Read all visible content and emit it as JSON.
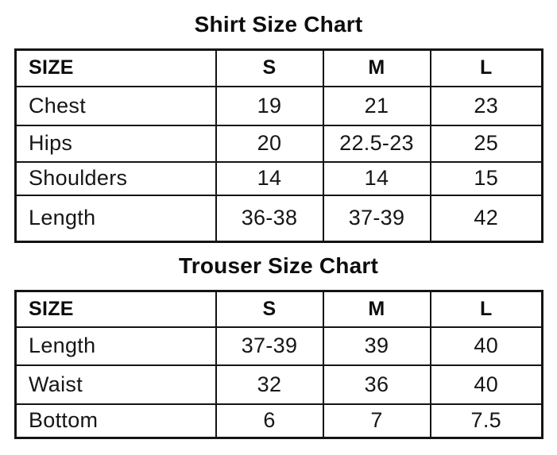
{
  "page": {
    "background": "#ffffff",
    "text_color": "#101010",
    "border_color": "#141414"
  },
  "shirt_chart": {
    "title": "Shirt Size Chart",
    "columns": [
      "SIZE",
      "S",
      "M",
      "L"
    ],
    "rows": [
      {
        "label": "Chest",
        "values": [
          "19",
          "21",
          "23"
        ]
      },
      {
        "label": "Hips",
        "values": [
          "20",
          "22.5-23",
          "25"
        ]
      },
      {
        "label": "Shoulders",
        "values": [
          "14",
          "14",
          "15"
        ]
      },
      {
        "label": "Length",
        "values": [
          "36-38",
          "37-39",
          "42"
        ]
      }
    ]
  },
  "trouser_chart": {
    "title": "Trouser Size Chart",
    "columns": [
      "SIZE",
      "S",
      "M",
      "L"
    ],
    "rows": [
      {
        "label": "Length",
        "values": [
          "37-39",
          "39",
          "40"
        ]
      },
      {
        "label": "Waist",
        "values": [
          "32",
          "36",
          "40"
        ]
      },
      {
        "label": "Bottom",
        "values": [
          "6",
          "7",
          "7.5"
        ]
      }
    ]
  }
}
